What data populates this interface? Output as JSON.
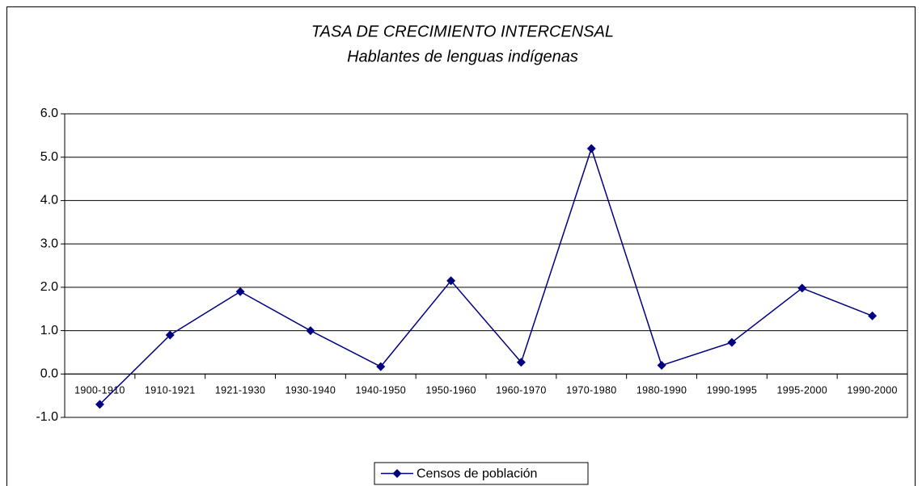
{
  "chart_data": {
    "type": "line",
    "title": "TASA DE CRECIMIENTO INTERCENSAL",
    "subtitle": "Hablantes de lenguas indígenas",
    "categories": [
      "1900-1910",
      "1910-1921",
      "1921-1930",
      "1930-1940",
      "1940-1950",
      "1950-1960",
      "1960-1970",
      "1970-1980",
      "1980-1990",
      "1990-1995",
      "1995-2000",
      "1990-2000"
    ],
    "series": [
      {
        "name": "Censos de población",
        "color": "#000080",
        "values": [
          -0.7,
          0.9,
          1.9,
          1.0,
          0.17,
          2.15,
          0.27,
          5.2,
          0.2,
          0.73,
          1.98,
          1.34
        ]
      }
    ],
    "ylim": [
      -1,
      6
    ],
    "yticks": [
      {
        "value": -1,
        "label": "-1.0"
      },
      {
        "value": 0,
        "label": "0.0"
      },
      {
        "value": 1,
        "label": "1.0"
      },
      {
        "value": 2,
        "label": "2.0"
      },
      {
        "value": 3,
        "label": "3.0"
      },
      {
        "value": 4,
        "label": "4.0"
      },
      {
        "value": 5,
        "label": "5.0"
      },
      {
        "value": 6,
        "label": "6.0"
      }
    ],
    "grid": true,
    "legend": "bottom"
  }
}
